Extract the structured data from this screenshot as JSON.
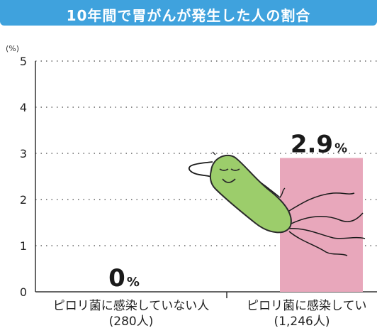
{
  "header": {
    "title": "10年間で胃がんが発生した人の割合"
  },
  "chart_data": {
    "type": "bar",
    "title": "10年間で胃がんが発生した人の割合",
    "unit_label": "(%)",
    "ylim": [
      0,
      5
    ],
    "yticks": [
      "0",
      "1",
      "2",
      "3",
      "4",
      "5"
    ],
    "grid": true,
    "categories": [
      {
        "line1": "ピロリ菌に感染していない人",
        "line2": "(280人)"
      },
      {
        "line1": "ピロリ菌に感染してい",
        "line2": "(1,246人)"
      }
    ],
    "values": [
      0,
      2.9
    ],
    "value_labels": [
      {
        "number": "0",
        "unit": "%"
      },
      {
        "number": "2.9",
        "unit": "%"
      }
    ],
    "bar_color": "#e8a7bb"
  }
}
